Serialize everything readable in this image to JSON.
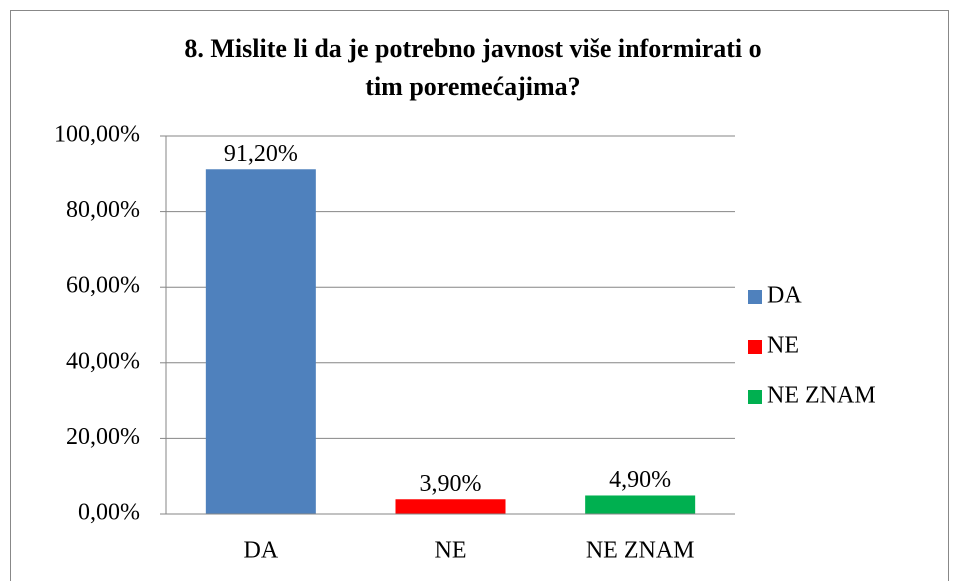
{
  "chart_data": {
    "type": "bar",
    "title": "8. Mislite li da je potrebno javnost više informirati o tim poremećajima?",
    "categories": [
      "DA",
      "NE",
      "NE ZNAM"
    ],
    "values": [
      91.2,
      3.9,
      4.9
    ],
    "value_labels": [
      "91,20%",
      "3,90%",
      "4,90%"
    ],
    "colors": [
      "#4f81bd",
      "#ff0000",
      "#00b050"
    ],
    "ylim": [
      0,
      100
    ],
    "yticks": [
      {
        "value": 0,
        "label": "0,00%"
      },
      {
        "value": 20,
        "label": "20,00%"
      },
      {
        "value": 40,
        "label": "40,00%"
      },
      {
        "value": 60,
        "label": "60,00%"
      },
      {
        "value": 80,
        "label": "80,00%"
      },
      {
        "value": 100,
        "label": "100,00%"
      }
    ],
    "grid": true,
    "legend": "right"
  }
}
